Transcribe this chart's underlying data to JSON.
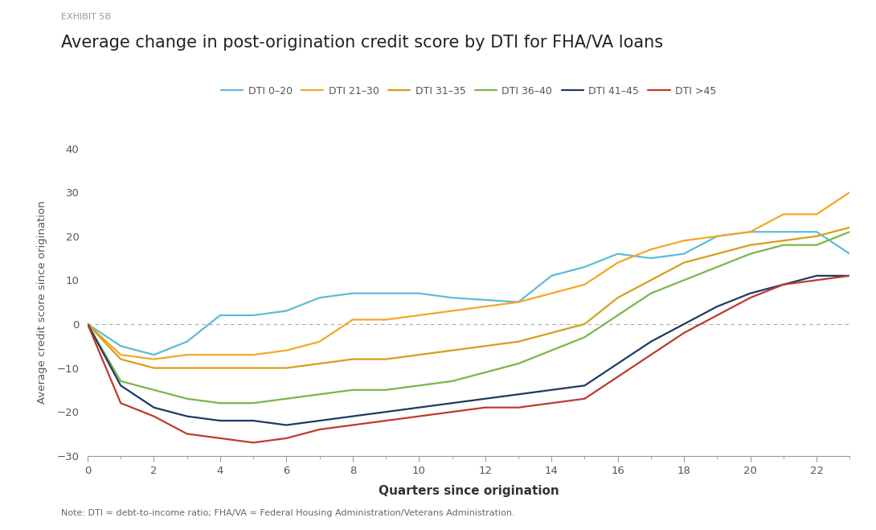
{
  "title": "Average change in post-origination credit score by DTI for FHA/VA loans",
  "exhibit_label": "EXHIBIT 5B",
  "xlabel": "Quarters since origination",
  "ylabel": "Average credit score since origination",
  "note": "Note: DTI = debt-to-income ratio; FHA/VA = Federal Housing Administration/Veterans Administration.",
  "ylim": [
    -30,
    40
  ],
  "xlim": [
    0,
    23
  ],
  "yticks": [
    -30,
    -20,
    -10,
    0,
    10,
    20,
    30,
    40
  ],
  "xticks": [
    0,
    2,
    4,
    6,
    8,
    10,
    12,
    14,
    16,
    18,
    20,
    22
  ],
  "xticks_minor": [
    1,
    3,
    5,
    7,
    9,
    11,
    13,
    15,
    17,
    19,
    21,
    23
  ],
  "background_color": "#ffffff",
  "series": [
    {
      "label": "DTI 0–20",
      "color": "#5bbcd6",
      "data_x": [
        0,
        1,
        2,
        3,
        4,
        5,
        6,
        7,
        8,
        9,
        10,
        11,
        12,
        13,
        14,
        15,
        16,
        17,
        18,
        19,
        20,
        21,
        22,
        23
      ],
      "data_y": [
        0,
        -5,
        -7,
        -4,
        2,
        2,
        3,
        6,
        7,
        7,
        7,
        6,
        5.5,
        5,
        11,
        13,
        16,
        15,
        16,
        20,
        21,
        21,
        21,
        16
      ]
    },
    {
      "label": "DTI 21–30",
      "color": "#f5a623",
      "data_x": [
        0,
        1,
        2,
        3,
        4,
        5,
        6,
        7,
        8,
        9,
        10,
        11,
        12,
        13,
        14,
        15,
        16,
        17,
        18,
        19,
        20,
        21,
        22,
        23
      ],
      "data_y": [
        0,
        -7,
        -8,
        -7,
        -7,
        -7,
        -6,
        -4,
        1,
        1,
        2,
        3,
        4,
        5,
        7,
        9,
        14,
        17,
        19,
        20,
        21,
        25,
        25,
        30
      ]
    },
    {
      "label": "DTI 31–35",
      "color": "#d4a017",
      "data_x": [
        0,
        1,
        2,
        3,
        4,
        5,
        6,
        7,
        8,
        9,
        10,
        11,
        12,
        13,
        14,
        15,
        16,
        17,
        18,
        19,
        20,
        21,
        22,
        23
      ],
      "data_y": [
        0,
        -8,
        -10,
        -10,
        -10,
        -10,
        -10,
        -9,
        -8,
        -8,
        -7,
        -6,
        -5,
        -4,
        -2,
        0,
        6,
        10,
        14,
        16,
        18,
        19,
        20,
        22
      ]
    },
    {
      "label": "DTI 36–40",
      "color": "#7ab648",
      "data_x": [
        0,
        1,
        2,
        3,
        4,
        5,
        6,
        7,
        8,
        9,
        10,
        11,
        12,
        13,
        14,
        15,
        16,
        17,
        18,
        19,
        20,
        21,
        22,
        23
      ],
      "data_y": [
        0,
        -13,
        -15,
        -17,
        -18,
        -18,
        -17,
        -16,
        -15,
        -15,
        -14,
        -13,
        -11,
        -9,
        -6,
        -3,
        2,
        7,
        10,
        13,
        16,
        18,
        18,
        21
      ]
    },
    {
      "label": "DTI 41–45",
      "color": "#1f3864",
      "data_x": [
        0,
        1,
        2,
        3,
        4,
        5,
        6,
        7,
        8,
        9,
        10,
        11,
        12,
        13,
        14,
        15,
        16,
        17,
        18,
        19,
        20,
        21,
        22,
        23
      ],
      "data_y": [
        0,
        -14,
        -19,
        -21,
        -22,
        -22,
        -23,
        -22,
        -21,
        -20,
        -19,
        -18,
        -17,
        -16,
        -15,
        -14,
        -9,
        -4,
        0,
        4,
        7,
        9,
        11,
        11
      ]
    },
    {
      "label": "DTI >45",
      "color": "#c0392b",
      "data_x": [
        0,
        1,
        2,
        3,
        4,
        5,
        6,
        7,
        8,
        9,
        10,
        11,
        12,
        13,
        14,
        15,
        16,
        17,
        18,
        19,
        20,
        21,
        22,
        23
      ],
      "data_y": [
        0,
        -18,
        -21,
        -25,
        -26,
        -27,
        -26,
        -24,
        -23,
        -22,
        -21,
        -20,
        -19,
        -19,
        -18,
        -17,
        -12,
        -7,
        -2,
        2,
        6,
        9,
        10,
        11
      ]
    }
  ]
}
